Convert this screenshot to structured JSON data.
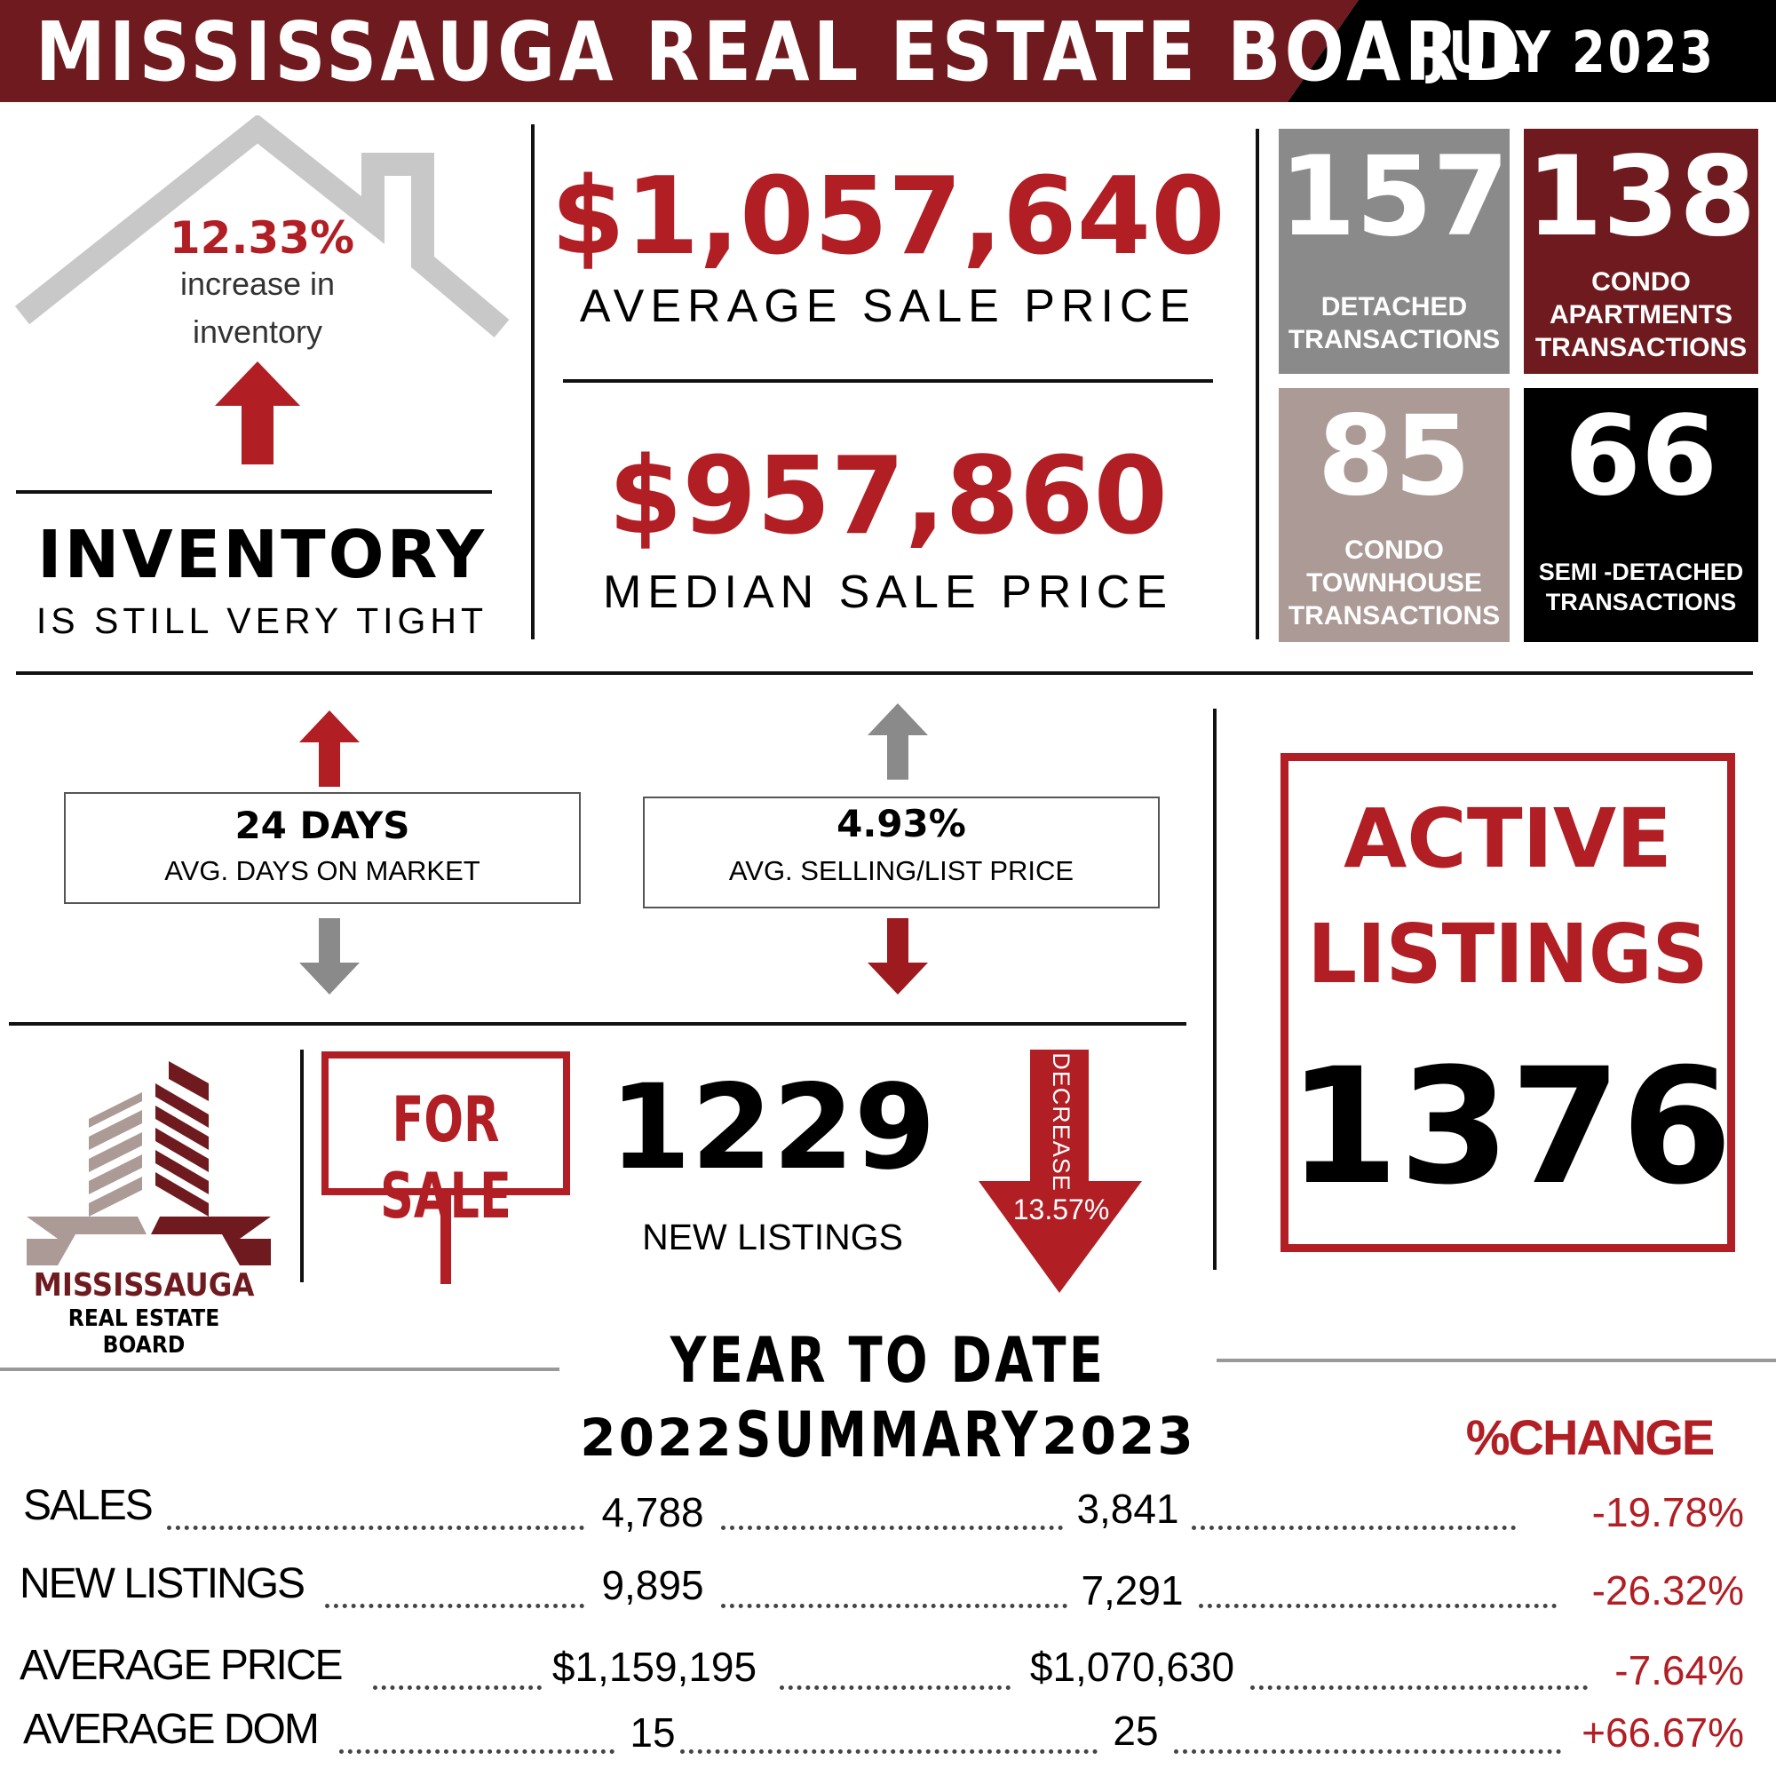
{
  "header": {
    "title": "MISSISSAUGA REAL ESTATE BOARD",
    "date": "JULY 2023"
  },
  "inventory": {
    "pct": "12.33%",
    "pct_caption_1": "increase in",
    "pct_caption_2": "inventory",
    "heading": "INVENTORY",
    "subheading": "IS STILL VERY TIGHT"
  },
  "prices": {
    "average": "$1,057,640",
    "average_label": "AVERAGE SALE PRICE",
    "median": "$957,860",
    "median_label": "MEDIAN SALE PRICE"
  },
  "transactions": [
    {
      "value": "157",
      "label_1": "DETACHED",
      "label_2": "TRANSACTIONS",
      "label_3": "",
      "color": "#8a8a8a"
    },
    {
      "value": "138",
      "label_1": "CONDO",
      "label_2": "APARTMENTS",
      "label_3": "TRANSACTIONS",
      "color": "#6f1a1e"
    },
    {
      "value": "85",
      "label_1": "CONDO",
      "label_2": "TOWNHOUSE",
      "label_3": "TRANSACTIONS",
      "color": "#ab9a95"
    },
    {
      "value": "66",
      "label_1": "SEMI -DETACHED",
      "label_2": "TRANSACTIONS",
      "label_3": "",
      "color": "#000000"
    }
  ],
  "days_on_market": {
    "value": "24 DAYS",
    "label": "AVG. DAYS ON MARKET"
  },
  "selling_list": {
    "value": "4.93%",
    "label": "AVG. SELLING/LIST PRICE"
  },
  "active_listings": {
    "line1": "ACTIVE",
    "line2": "LISTINGS",
    "value": "1376"
  },
  "logo": {
    "line1": "MISSISSAUGA",
    "line2": "REAL ESTATE BOARD"
  },
  "for_sale_sign": "FOR SALE",
  "new_listings": {
    "value": "1229",
    "label": "NEW LISTINGS",
    "change_word": "DECREASE",
    "change_pct": "13.57%"
  },
  "ytd": {
    "title": "YEAR TO DATE SUMMARY",
    "col_2022": "2022",
    "col_2023": "2023",
    "col_change": "%CHANGE",
    "rows": [
      {
        "label": "SALES",
        "v2022": "4,788",
        "v2023": "3,841",
        "change": "-19.78%"
      },
      {
        "label": "NEW LISTINGS",
        "v2022": "9,895",
        "v2023": "7,291",
        "change": "-26.32%"
      },
      {
        "label": "AVERAGE PRICE",
        "v2022": "$1,159,195",
        "v2023": "$1,070,630",
        "change": "-7.64%"
      },
      {
        "label": "AVERAGE DOM",
        "v2022": "15",
        "v2023": "25",
        "change": "+66.67%"
      }
    ]
  },
  "colors": {
    "red": "#b11e24",
    "maroon": "#6f1a1e",
    "gray": "#8a8a8a",
    "taupe": "#ab9a95"
  }
}
